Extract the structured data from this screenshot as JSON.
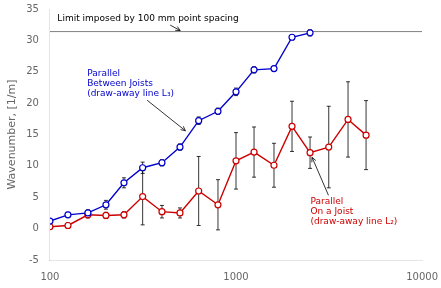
{
  "chart_data": {
    "type": "line",
    "ylabel": "Wavenumber, [1/m]",
    "log": "x",
    "grid": false,
    "xlim": [
      100,
      10000
    ],
    "xticks": [
      100,
      1000,
      10000
    ],
    "ylim": [
      -5,
      35
    ],
    "yticks": [
      -5,
      0,
      5,
      10,
      15,
      20,
      25,
      30,
      35
    ],
    "series": [
      {
        "color": "#0000cc",
        "marker": "circle",
        "line_style": "solid",
        "x": [
          100,
          125,
          160,
          200,
          250,
          315,
          400,
          500,
          630,
          800,
          1000,
          1250,
          1600,
          2000,
          2500
        ],
        "values": [
          1.2,
          2.2,
          2.5,
          3.8,
          7.3,
          9.7,
          10.5,
          13.0,
          17.2,
          18.7,
          21.8,
          25.3,
          25.5,
          30.5,
          31.2
        ],
        "errors": [
          0.3,
          0.4,
          0.5,
          0.7,
          0.8,
          0.9,
          0.5,
          0.5,
          0.6,
          0.5,
          0.6,
          0.5,
          0.4,
          0.4,
          0.5
        ]
      },
      {
        "color": "#cc0000",
        "marker": "circle",
        "line_style": "solid",
        "x": [
          100,
          125,
          160,
          200,
          250,
          315,
          400,
          500,
          630,
          800,
          1000,
          1250,
          1600,
          2000,
          2500,
          3150,
          4000,
          5000
        ],
        "values": [
          0.3,
          0.5,
          2.2,
          2.1,
          2.2,
          5.1,
          2.7,
          2.5,
          6.0,
          3.8,
          10.8,
          12.2,
          10.1,
          16.3,
          12.1,
          13.0,
          17.4,
          14.9
        ],
        "errors": [
          0.3,
          0.4,
          0.5,
          0.5,
          0.5,
          4.5,
          1.0,
          0.8,
          5.5,
          4.0,
          4.5,
          4.0,
          3.5,
          4.0,
          2.5,
          6.5,
          6.0,
          5.5
        ]
      }
    ],
    "hline": {
      "y": 31.4,
      "label": "Limit imposed by 100 mm point spacing"
    },
    "annotations": [
      {
        "text": "Parallel\nBetween Joists\n(draw-away line L₃)",
        "color": "#0000cc"
      },
      {
        "text": "Parallel\nOn a Joist\n(draw-away line L₂)",
        "color": "#cc0000"
      }
    ]
  }
}
